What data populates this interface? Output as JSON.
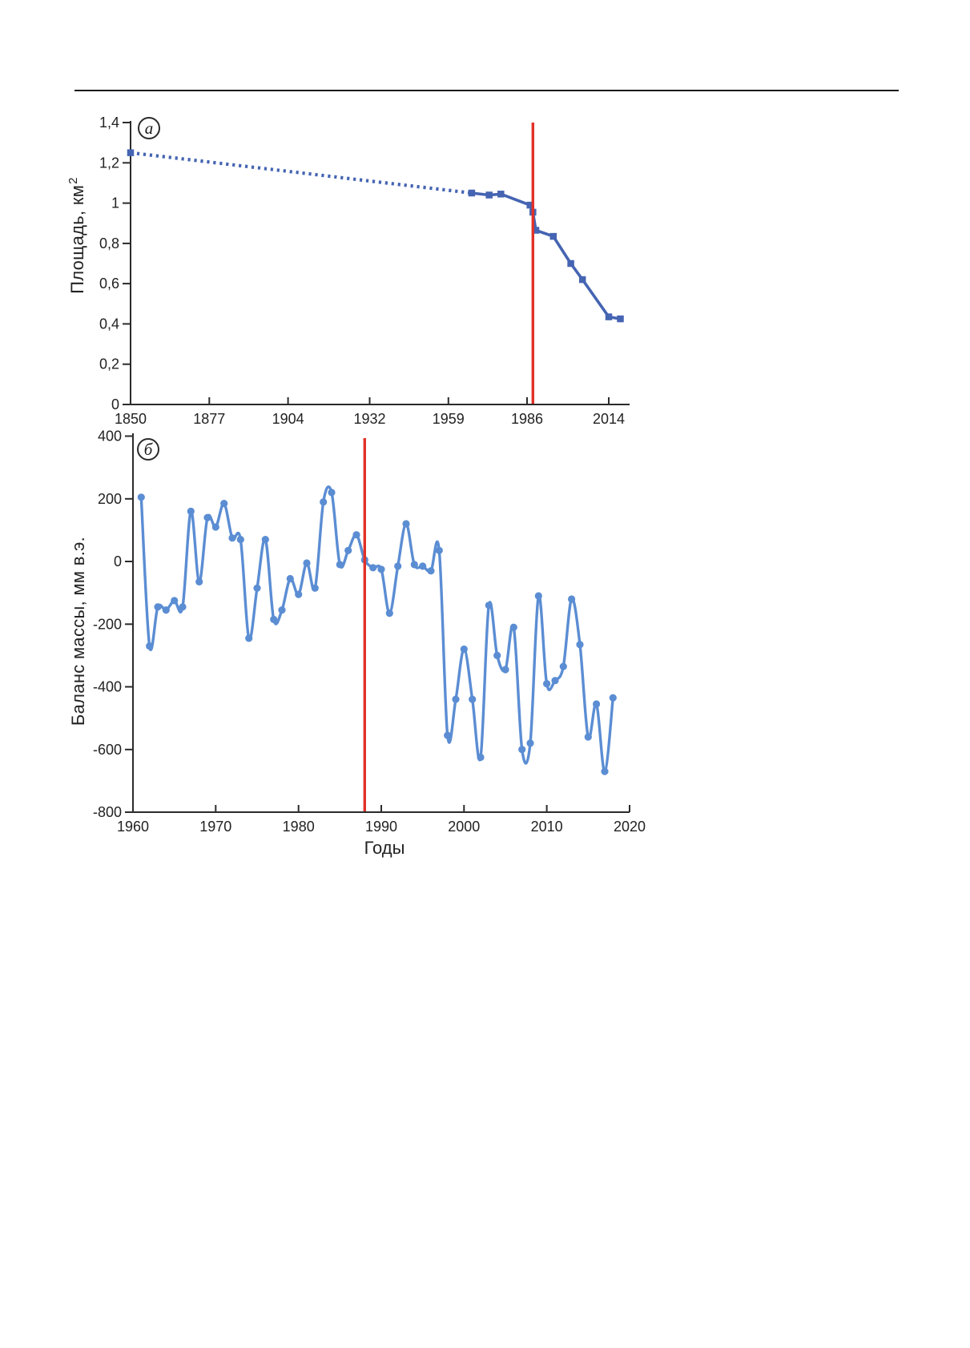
{
  "page": {
    "panel_a_label": "а",
    "panel_b_label": "б"
  },
  "chart_data": [
    {
      "id": "a",
      "type": "line",
      "panel_label": "а",
      "title": "",
      "ylabel": "Площадь, км²",
      "ylabel_main": "Площадь, км",
      "ylabel_sup": "2",
      "xlabel": "",
      "x_tick_values": [
        1850,
        1877,
        1904,
        1932,
        1959,
        1986,
        2014
      ],
      "x_tick_labels": [
        "1850",
        "1877",
        "1904",
        "1932",
        "1959",
        "1986",
        "2014"
      ],
      "y_tick_values": [
        0,
        0.2,
        0.4,
        0.6,
        0.8,
        1,
        1.2,
        1.4
      ],
      "y_tick_labels": [
        "0",
        "0,2",
        "0,4",
        "0,6",
        "0,8",
        "1",
        "1,2",
        "1,4"
      ],
      "xlim": [
        1850,
        2021
      ],
      "ylim": [
        0,
        1.4
      ],
      "grid": false,
      "legend": "none",
      "vline": {
        "x": 1988,
        "color": "#e23127"
      },
      "line_color": "#4564b2",
      "marker": "square",
      "series": [
        {
          "name": "area-reconstructed-dotted",
          "style": "dotted",
          "markers": "first",
          "x": [
            1850,
            1967
          ],
          "y": [
            1.25,
            1.05
          ]
        },
        {
          "name": "area-observed",
          "style": "solid",
          "markers": "all",
          "x": [
            1967,
            1973,
            1977,
            1987,
            1988,
            1989,
            1995,
            2001,
            2005,
            2014,
            2018
          ],
          "y": [
            1.05,
            1.04,
            1.045,
            0.99,
            0.955,
            0.865,
            0.835,
            0.7,
            0.62,
            0.435,
            0.425
          ]
        }
      ]
    },
    {
      "id": "b",
      "type": "line",
      "panel_label": "б",
      "title": "",
      "ylabel": "Баланс массы, мм в.э.",
      "xlabel": "Годы",
      "x_tick_values": [
        1960,
        1970,
        1980,
        1990,
        2000,
        2010,
        2020
      ],
      "x_tick_labels": [
        "1960",
        "1970",
        "1980",
        "1990",
        "2000",
        "2010",
        "2020"
      ],
      "y_tick_values": [
        400,
        200,
        0,
        -200,
        -400,
        -600,
        -800
      ],
      "y_tick_labels": [
        "400",
        "200",
        "0",
        "-200",
        "-400",
        "-600",
        "-800"
      ],
      "xlim": [
        1960,
        2020
      ],
      "ylim": [
        -800,
        400
      ],
      "grid": false,
      "legend": "none",
      "vline": {
        "x": 1988,
        "color": "#e23127"
      },
      "line_color": "#5b8dd3",
      "marker": "circle",
      "series": [
        {
          "name": "mass-balance-annual",
          "style": "smooth",
          "markers": "all",
          "x": [
            1961,
            1962,
            1963,
            1964,
            1965,
            1966,
            1967,
            1968,
            1969,
            1970,
            1971,
            1972,
            1973,
            1974,
            1975,
            1976,
            1977,
            1978,
            1979,
            1980,
            1981,
            1982,
            1983,
            1984,
            1985,
            1986,
            1987,
            1988,
            1989,
            1990,
            1991,
            1992,
            1993,
            1994,
            1995,
            1996,
            1997,
            1998,
            1999,
            2000,
            2001,
            2002,
            2003,
            2004,
            2005,
            2006,
            2007,
            2008,
            2009,
            2010,
            2011,
            2012,
            2013,
            2014,
            2015,
            2016,
            2017,
            2018
          ],
          "y": [
            205,
            -270,
            -145,
            -155,
            -125,
            -145,
            160,
            -65,
            140,
            110,
            185,
            75,
            70,
            -245,
            -85,
            70,
            -185,
            -155,
            -55,
            -105,
            -5,
            -85,
            190,
            220,
            -10,
            35,
            85,
            5,
            -20,
            -25,
            -165,
            -15,
            120,
            -10,
            -15,
            -30,
            35,
            -555,
            -440,
            -280,
            -440,
            -625,
            -140,
            -300,
            -345,
            -210,
            -600,
            -580,
            -110,
            -390,
            -380,
            -335,
            -120,
            -265,
            -560,
            -455,
            -670,
            -435
          ]
        }
      ]
    }
  ]
}
